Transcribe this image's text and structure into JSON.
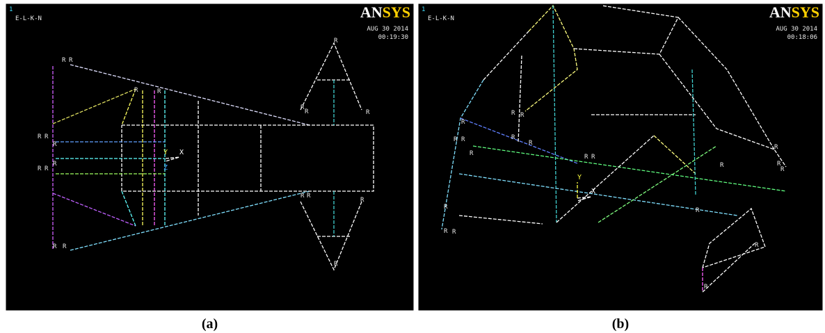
{
  "panels": [
    {
      "window_number": "1",
      "plot_label": "E-L-K-N",
      "logo_parts": [
        "AN",
        "SYS"
      ],
      "date": "AUG 30 2014",
      "time": "00:19:30",
      "triad": [
        "Y",
        "X",
        "Z"
      ],
      "node_labels": [
        "R",
        "R",
        "R",
        "R",
        "R",
        "R",
        "R",
        "R",
        "R",
        "R",
        "R",
        "R",
        "R",
        "R",
        "R",
        "R",
        "R",
        "R",
        "R",
        "R"
      ],
      "caption": "(a)"
    },
    {
      "window_number": "1",
      "plot_label": "E-L-K-N",
      "logo_parts": [
        "AN",
        "SYS"
      ],
      "date": "AUG 30 2014",
      "time": "00:18:06",
      "triad": [
        "Y",
        "X"
      ],
      "node_labels": [
        "R",
        "R",
        "R",
        "R",
        "R",
        "R",
        "R",
        "R",
        "R",
        "R",
        "R",
        "R",
        "R",
        "R",
        "R",
        "R",
        "R",
        "R",
        "R",
        "R"
      ],
      "caption": "(b)"
    }
  ]
}
